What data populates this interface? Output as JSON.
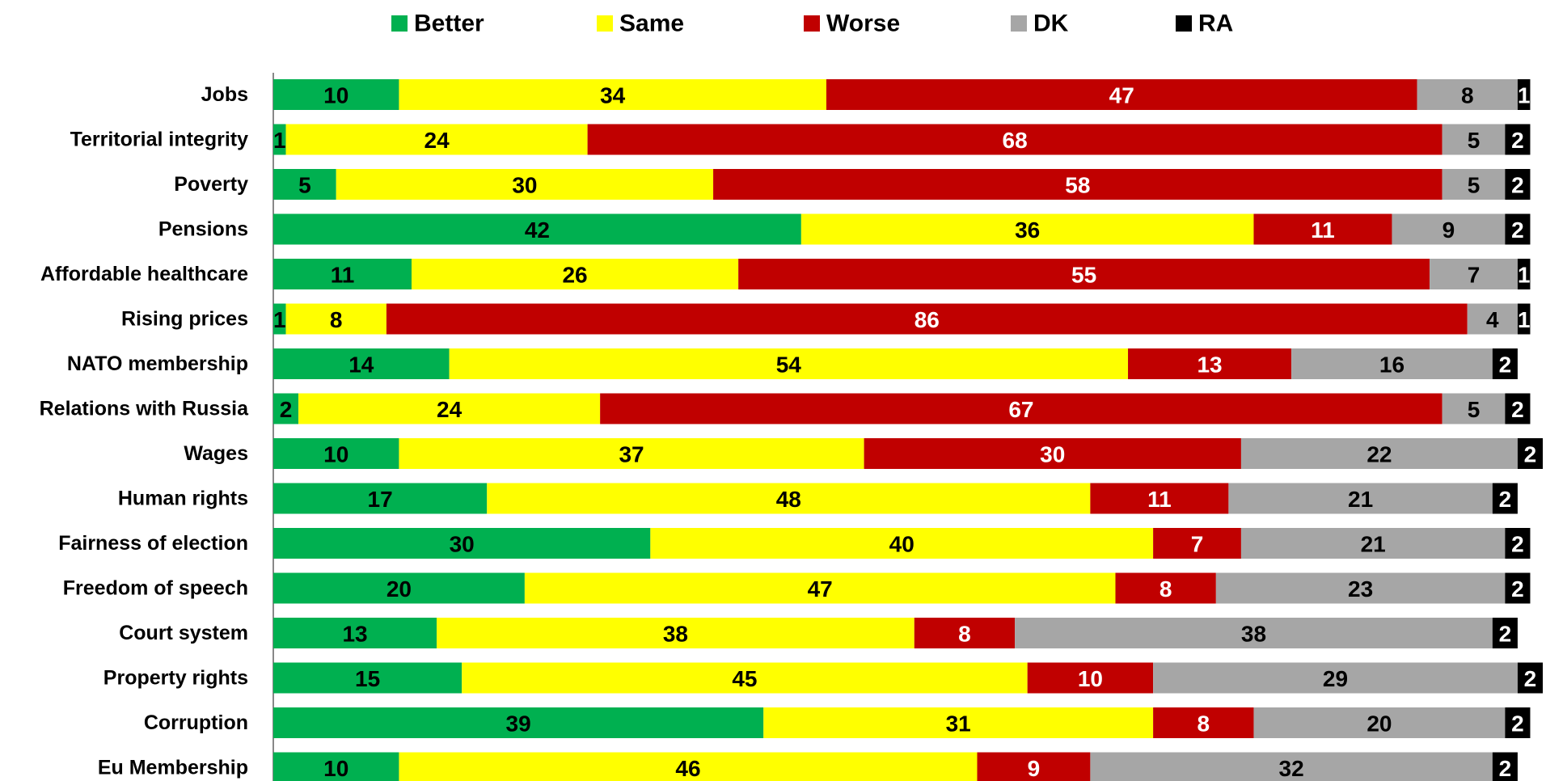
{
  "chart_data": {
    "type": "stacked_bar_horizontal",
    "categories": [
      "Jobs",
      "Territorial integrity",
      "Poverty",
      "Pensions",
      "Affordable healthcare",
      "Rising prices",
      "NATO membership",
      "Relations with Russia",
      "Wages",
      "Human rights",
      "Fairness of election",
      "Freedom of speech",
      "Court system",
      "Property rights",
      "Corruption",
      "Eu Membership"
    ],
    "series": [
      {
        "name": "Better",
        "color": "#00b050",
        "values": [
          10,
          1,
          5,
          42,
          11,
          1,
          14,
          2,
          10,
          17,
          30,
          20,
          13,
          15,
          39,
          10
        ]
      },
      {
        "name": "Same",
        "color": "#ffff00",
        "values": [
          34,
          24,
          30,
          36,
          26,
          8,
          54,
          24,
          37,
          48,
          40,
          47,
          38,
          45,
          31,
          46
        ]
      },
      {
        "name": "Worse",
        "color": "#c00000",
        "values": [
          47,
          68,
          58,
          11,
          55,
          86,
          13,
          67,
          30,
          11,
          7,
          8,
          8,
          10,
          8,
          9
        ]
      },
      {
        "name": "DK",
        "color": "#a6a6a6",
        "values": [
          8,
          5,
          5,
          9,
          7,
          4,
          16,
          5,
          22,
          21,
          21,
          23,
          38,
          29,
          20,
          32
        ]
      },
      {
        "name": "RA",
        "color": "#000000",
        "values": [
          1,
          2,
          2,
          2,
          1,
          1,
          2,
          2,
          2,
          2,
          2,
          2,
          2,
          2,
          2,
          2
        ]
      }
    ],
    "xlim": [
      0,
      100
    ],
    "legend": "top"
  }
}
